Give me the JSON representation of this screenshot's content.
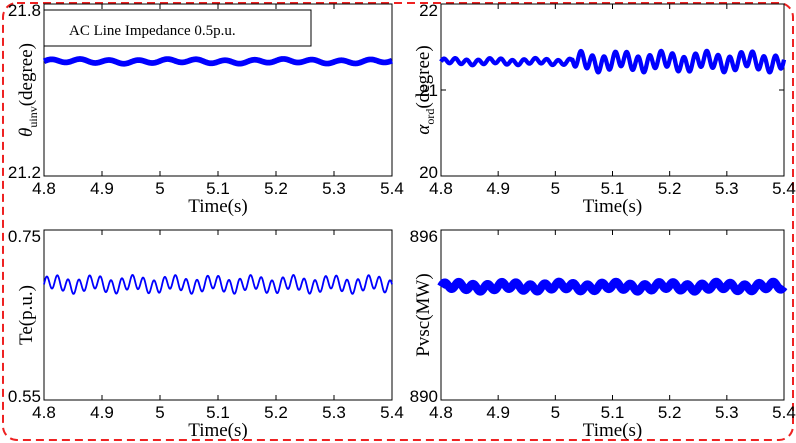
{
  "figure": {
    "border_color": "#ee2222",
    "series_color": "#0000ff"
  },
  "chart_data": [
    {
      "id": "theta",
      "type": "line",
      "xlabel": "Time(s)",
      "ylabel_main": "θ",
      "ylabel_sub": "uinv",
      "ylabel_rest": "(degree)",
      "legend_box": "AC Line Impedance 0.5p.u.",
      "xlim": [
        4.8,
        5.4
      ],
      "ylim": [
        21.2,
        21.8
      ],
      "x_ticks": [
        "4.8",
        "4.9",
        "5",
        "5.1",
        "5.2",
        "5.3",
        "5.4"
      ],
      "y_ticks": [
        "21.2",
        "21.8"
      ],
      "series": [
        {
          "baseline": 21.6,
          "amplitude_before": 0.006,
          "amplitude_after": 0.006,
          "period_s": 0.05,
          "band": 0.02,
          "step_at": 5.4
        }
      ]
    },
    {
      "id": "alpha",
      "type": "line",
      "xlabel": "Time(s)",
      "ylabel_main": "α",
      "ylabel_sub": "ord",
      "ylabel_rest": "(degree)",
      "xlim": [
        4.8,
        5.4
      ],
      "ylim": [
        20,
        22
      ],
      "x_ticks": [
        "4.8",
        "4.9",
        "5",
        "5.1",
        "5.2",
        "5.3",
        "5.4"
      ],
      "y_ticks": [
        "20",
        "21",
        "22"
      ],
      "series": [
        {
          "baseline": 21.33,
          "amplitude_before": 0.03,
          "amplitude_after": 0.09,
          "period_s": 0.02,
          "band": 0.05,
          "step_at": 5.03
        }
      ]
    },
    {
      "id": "te",
      "type": "line",
      "xlabel": "Time(s)",
      "ylabel_main": "Te(p.u.)",
      "xlim": [
        4.8,
        5.4
      ],
      "ylim": [
        0.55,
        0.75
      ],
      "x_ticks": [
        "4.8",
        "4.9",
        "5",
        "5.1",
        "5.2",
        "5.3",
        "5.4"
      ],
      "y_ticks": [
        "0.55",
        "0.75"
      ],
      "series": [
        {
          "baseline": 0.686,
          "amplitude_before": 0.008,
          "amplitude_after": 0.008,
          "period_s": 0.0185,
          "band": 0.0,
          "step_at": 5.4
        }
      ]
    },
    {
      "id": "pvsc",
      "type": "line",
      "xlabel": "Time(s)",
      "ylabel_main": "Pvsc(MW)",
      "xlim": [
        4.8,
        5.4
      ],
      "ylim": [
        890,
        896
      ],
      "x_ticks": [
        "4.8",
        "4.9",
        "5",
        "5.1",
        "5.2",
        "5.3",
        "5.4"
      ],
      "y_ticks": [
        "890",
        "896"
      ],
      "series": [
        {
          "baseline": 894.0,
          "amplitude_before": 0.12,
          "amplitude_after": 0.12,
          "period_s": 0.025,
          "band": 0.3,
          "step_at": 5.4
        }
      ]
    }
  ]
}
